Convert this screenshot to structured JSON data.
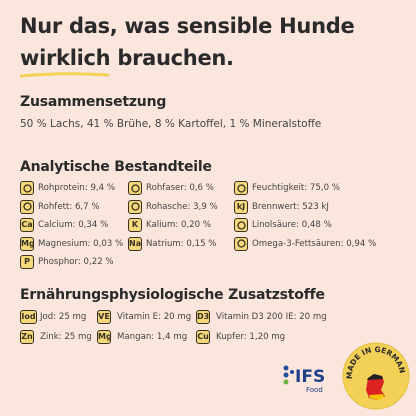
{
  "header": {
    "title_line1": "Nur das, was sensible Hunde",
    "title_highlight": "wirklich",
    "title_rest": "brauchen."
  },
  "composition": {
    "heading": "Zusammensetzung",
    "text": "50 % Lachs, 41 % Brühe, 8 % Kartoffel, 1 % Mineralstoffe"
  },
  "analytics": {
    "heading": "Analytische Bestandteile",
    "columns": [
      [
        {
          "text": "Rohprotein: 9,4 %"
        },
        {
          "text": "Rohfett: 6,7 %"
        },
        {
          "icon": "Ca",
          "text": "Calcium: 0,34 %"
        },
        {
          "icon": "Mg",
          "text": "Magnesium: 0,03 %"
        },
        {
          "icon": "P",
          "text": "Phosphor: 0,22 %"
        }
      ],
      [
        {
          "text": "Rohfaser: 0,6 %"
        },
        {
          "text": "Rohasche: 3,9 %"
        },
        {
          "icon": "K",
          "text": "Kalium: 0,20 %"
        },
        {
          "icon": "Na",
          "text": "Natrium: 0,15 %"
        }
      ],
      [
        {
          "text": "Feuchtigkeit: 75,0 %"
        },
        {
          "icon": "kJ",
          "text": "Brennwert: 523 kJ"
        },
        {
          "text": "Linolsäure: 0,48 %"
        },
        {
          "text": "Omega-3-Fettsäuren: 0,94 %"
        }
      ]
    ]
  },
  "additives": {
    "heading": "Ernährungsphysiologische Zusatzstoffe",
    "columns": [
      [
        {
          "icon": "Iod",
          "text": "Jod: 25 mg"
        },
        {
          "icon": "Zn",
          "text": "Zink: 25 mg"
        }
      ],
      [
        {
          "icon": "VE",
          "text": "Vitamin E: 20 mg"
        },
        {
          "icon": "Mg",
          "text": "Mangan: 1,4 mg"
        }
      ],
      [
        {
          "icon": "D3",
          "text": "Vitamin D3 200 IE: 20 mg"
        },
        {
          "icon": "Cu",
          "text": "Kupfer: 1,20 mg"
        }
      ]
    ]
  },
  "logos": {
    "ifs": "IFS",
    "ifs_sub": "Food",
    "badge": "MADE IN GERMANY"
  }
}
